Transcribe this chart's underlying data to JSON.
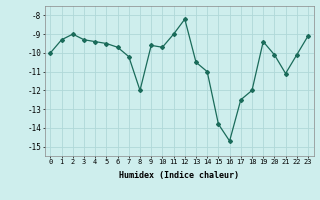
{
  "x": [
    0,
    1,
    2,
    3,
    4,
    5,
    6,
    7,
    8,
    9,
    10,
    11,
    12,
    13,
    14,
    15,
    16,
    17,
    18,
    19,
    20,
    21,
    22,
    23
  ],
  "y": [
    -10.0,
    -9.3,
    -9.0,
    -9.3,
    -9.4,
    -9.5,
    -9.7,
    -10.2,
    -12.0,
    -9.6,
    -9.7,
    -9.0,
    -8.2,
    -10.5,
    -11.0,
    -13.8,
    -14.7,
    -12.5,
    -12.0,
    -9.4,
    -10.1,
    -11.1,
    -10.1,
    -9.1
  ],
  "xlabel": "Humidex (Indice chaleur)",
  "xlim": [
    -0.5,
    23.5
  ],
  "ylim": [
    -15.5,
    -7.5
  ],
  "yticks": [
    -15,
    -14,
    -13,
    -12,
    -11,
    -10,
    -9,
    -8
  ],
  "xticks": [
    0,
    1,
    2,
    3,
    4,
    5,
    6,
    7,
    8,
    9,
    10,
    11,
    12,
    13,
    14,
    15,
    16,
    17,
    18,
    19,
    20,
    21,
    22,
    23
  ],
  "line_color": "#1a6b5a",
  "marker": "D",
  "marker_size": 2,
  "bg_color": "#ceeeed",
  "grid_color": "#b0d8d8",
  "font_family": "monospace"
}
